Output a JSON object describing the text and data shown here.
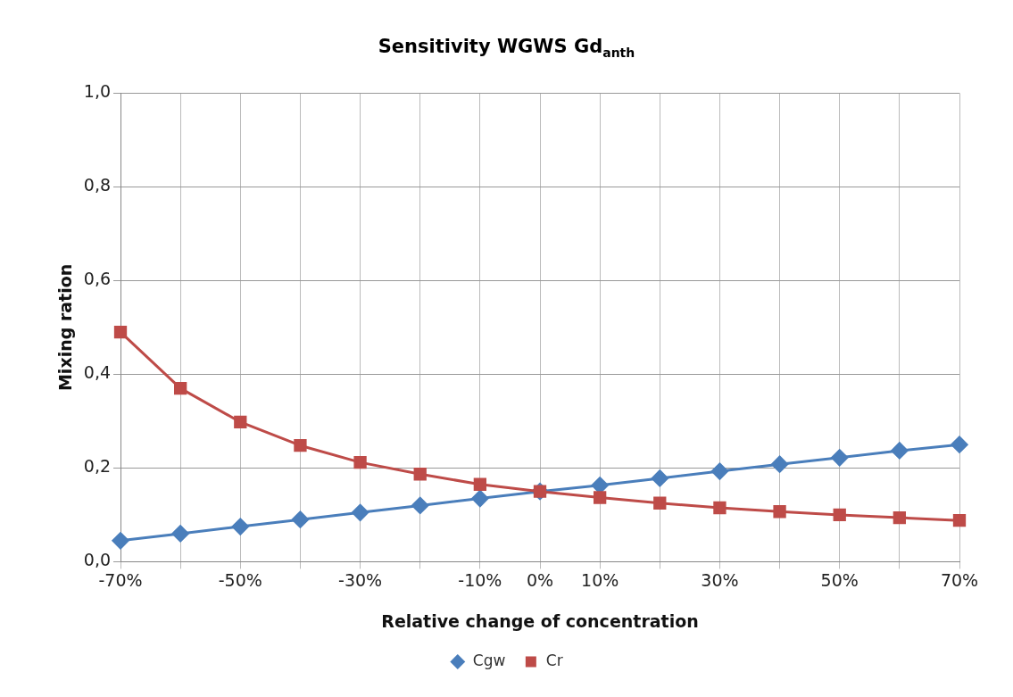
{
  "chart_data": {
    "type": "line",
    "title": "Sensitivity WGWS  Gd$_{anth}$",
    "xlabel": "Relative change of concentration",
    "ylabel": "Mixing ration",
    "categories": [
      "-70%",
      null,
      "-50%",
      null,
      "-30%",
      null,
      "-10%",
      "0%",
      "10%",
      null,
      "30%",
      null,
      "50%",
      null,
      "70%"
    ],
    "series": [
      {
        "name": "Cgw",
        "color": "#4a7ebb",
        "marker": "diamond",
        "values": [
          0.045,
          0.06,
          0.075,
          0.09,
          0.105,
          0.12,
          0.135,
          0.15,
          0.163,
          0.178,
          0.193,
          0.208,
          0.222,
          0.237,
          0.25
        ]
      },
      {
        "name": "Cr",
        "color": "#be4b48",
        "marker": "square",
        "values": [
          0.49,
          0.37,
          0.298,
          0.248,
          0.212,
          0.187,
          0.165,
          0.15,
          0.137,
          0.125,
          0.115,
          0.107,
          0.1,
          0.094,
          0.088
        ]
      }
    ],
    "ylim": [
      0,
      1
    ],
    "yticks": [
      {
        "value": 0,
        "label": "0,0"
      },
      {
        "value": 0.2,
        "label": "0,2"
      },
      {
        "value": 0.4,
        "label": "0,4"
      },
      {
        "value": 0.6,
        "label": "0,6"
      },
      {
        "value": 0.8,
        "label": "0,8"
      },
      {
        "value": 1,
        "label": "1,0"
      }
    ],
    "grid": true,
    "legend": "bottom",
    "line_style": "solid"
  }
}
